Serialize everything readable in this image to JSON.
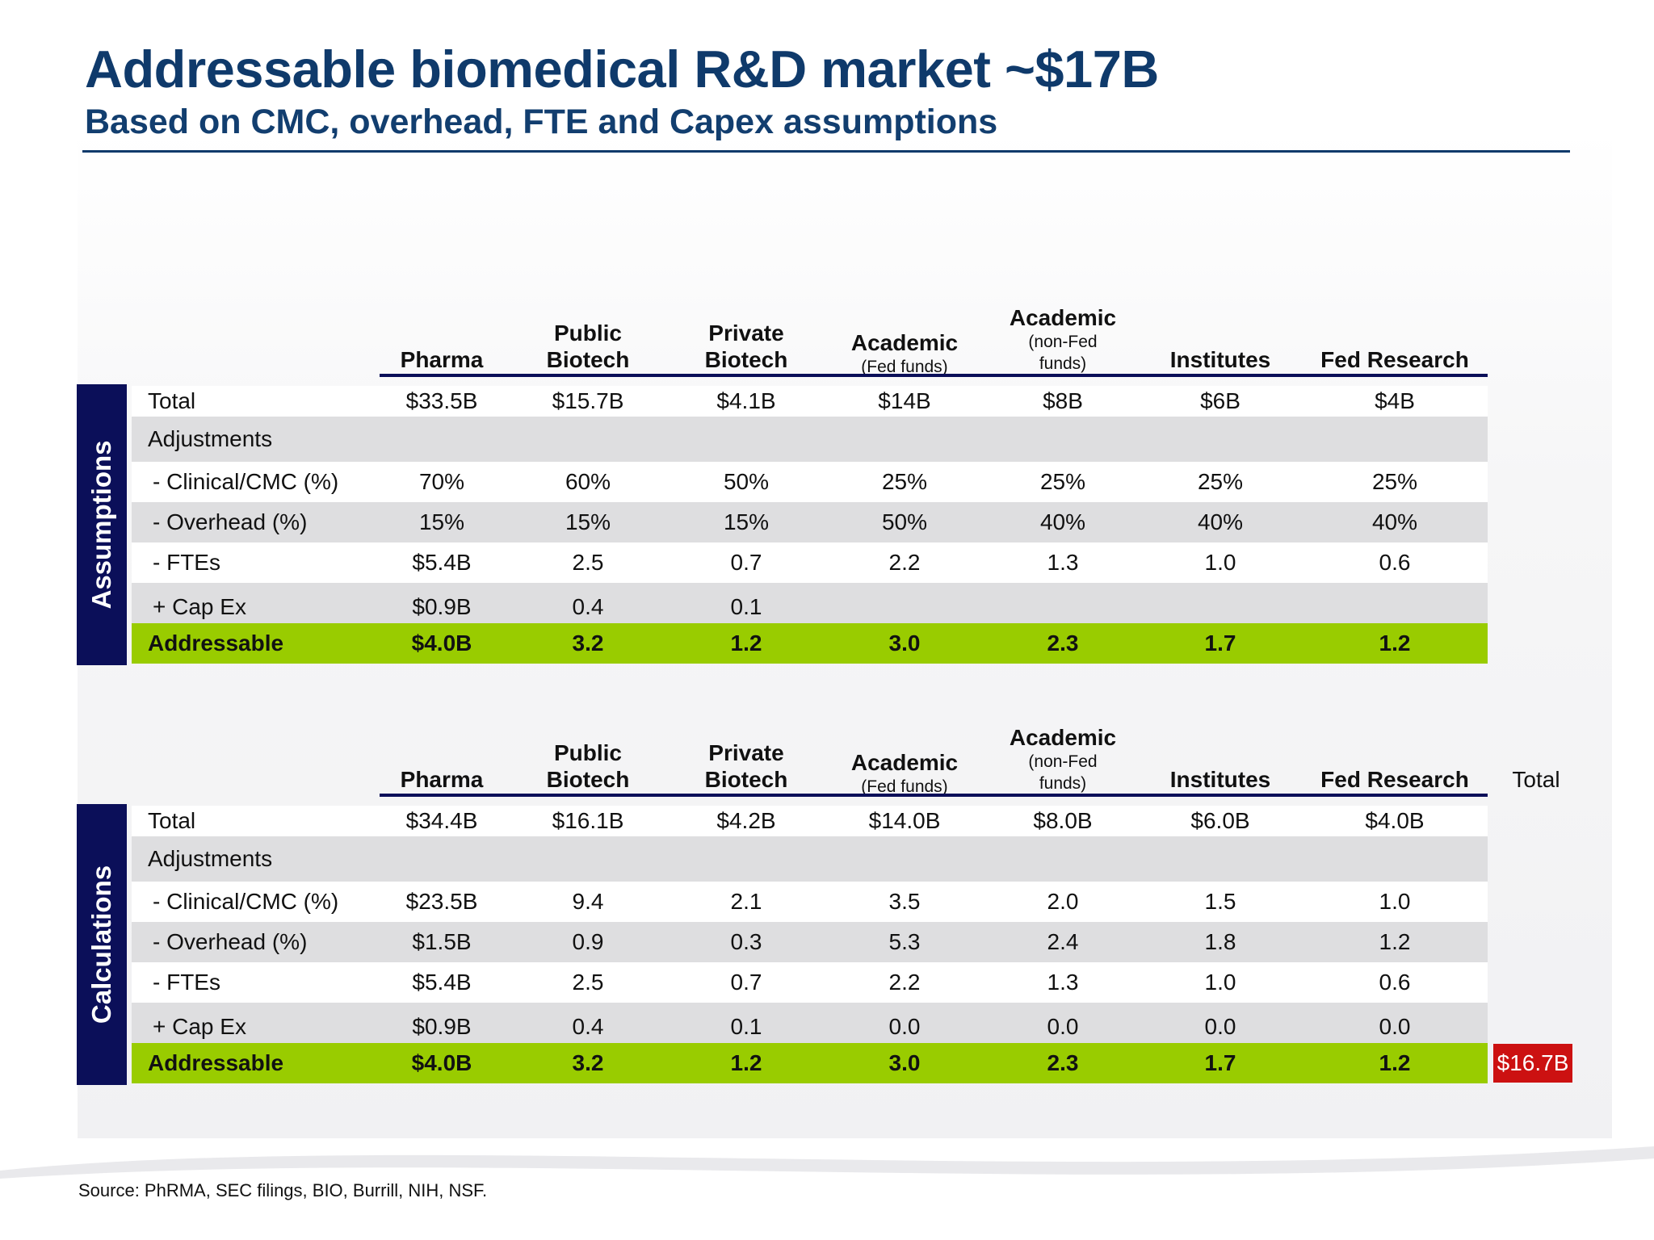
{
  "title": "Addressable biomedical R&D market ~$17B",
  "subtitle": "Based on CMC, overhead, FTE and Capex assumptions",
  "columns": [
    {
      "line1": "",
      "line2": "Pharma",
      "sub": ""
    },
    {
      "line1": "Public",
      "line2": "Biotech",
      "sub": ""
    },
    {
      "line1": "Private",
      "line2": "Biotech",
      "sub": ""
    },
    {
      "line1": "",
      "line2": "Academic",
      "sub": "(Fed funds)"
    },
    {
      "line1": "Academic",
      "line2": "",
      "sub": "(non-Fed funds)"
    },
    {
      "line1": "",
      "line2": "Institutes",
      "sub": ""
    },
    {
      "line1": "",
      "line2": "Fed Research",
      "sub": ""
    }
  ],
  "assumptions": {
    "side_label": "Assumptions",
    "rows": [
      {
        "label": "Total",
        "values": [
          "$33.5B",
          "$15.7B",
          "$4.1B",
          "$14B",
          "$8B",
          "$6B",
          "$4B"
        ]
      },
      {
        "label": "Adjustments",
        "values": [
          "",
          "",
          "",
          "",
          "",
          "",
          ""
        ]
      },
      {
        "label": "- Clinical/CMC (%)",
        "values": [
          "70%",
          "60%",
          "50%",
          "25%",
          "25%",
          "25%",
          "25%"
        ]
      },
      {
        "label": "- Overhead (%)",
        "values": [
          "15%",
          "15%",
          "15%",
          "50%",
          "40%",
          "40%",
          "40%"
        ]
      },
      {
        "label": "- FTEs",
        "values": [
          "$5.4B",
          "2.5",
          "0.7",
          "2.2",
          "1.3",
          "1.0",
          "0.6"
        ]
      },
      {
        "label": "+ Cap Ex",
        "values": [
          "$0.9B",
          "0.4",
          "0.1",
          "",
          "",
          "",
          ""
        ]
      },
      {
        "label": "Addressable",
        "values": [
          "$4.0B",
          "3.2",
          "1.2",
          "3.0",
          "2.3",
          "1.7",
          "1.2"
        ]
      }
    ]
  },
  "calculations": {
    "side_label": "Calculations",
    "total_header": "Total",
    "total_value": "$16.7B",
    "rows": [
      {
        "label": "Total",
        "values": [
          "$34.4B",
          "$16.1B",
          "$4.2B",
          "$14.0B",
          "$8.0B",
          "$6.0B",
          "$4.0B"
        ]
      },
      {
        "label": "Adjustments",
        "values": [
          "",
          "",
          "",
          "",
          "",
          "",
          ""
        ]
      },
      {
        "label": "- Clinical/CMC (%)",
        "values": [
          "$23.5B",
          "9.4",
          "2.1",
          "3.5",
          "2.0",
          "1.5",
          "1.0"
        ]
      },
      {
        "label": "- Overhead (%)",
        "values": [
          "$1.5B",
          "0.9",
          "0.3",
          "5.3",
          "2.4",
          "1.8",
          "1.2"
        ]
      },
      {
        "label": "- FTEs",
        "values": [
          "$5.4B",
          "2.5",
          "0.7",
          "2.2",
          "1.3",
          "1.0",
          "0.6"
        ]
      },
      {
        "label": "+ Cap Ex",
        "values": [
          "$0.9B",
          "0.4",
          "0.1",
          "0.0",
          "0.0",
          "0.0",
          "0.0"
        ]
      },
      {
        "label": "Addressable",
        "values": [
          "$4.0B",
          "3.2",
          "1.2",
          "3.0",
          "2.3",
          "1.7",
          "1.2"
        ]
      }
    ]
  },
  "source": "Source:  PhRMA, SEC filings, BIO, Burrill, NIH, NSF.",
  "colors": {
    "navy": "#0b0f59",
    "title": "#0f3a6b",
    "green": "#99cc00",
    "grey": "#dedee0",
    "red": "#cc1111"
  }
}
